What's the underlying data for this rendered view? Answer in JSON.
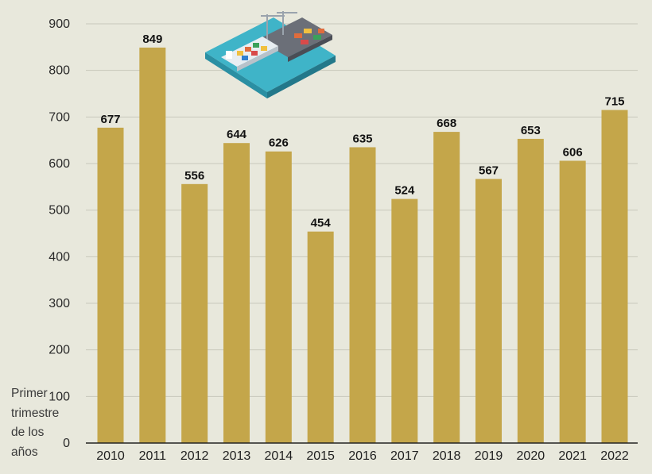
{
  "chart_data": {
    "type": "bar",
    "categories": [
      "2010",
      "2011",
      "2012",
      "2013",
      "2014",
      "2015",
      "2016",
      "2017",
      "2018",
      "2019",
      "2020",
      "2021",
      "2022"
    ],
    "values": [
      677,
      849,
      556,
      644,
      626,
      454,
      635,
      524,
      668,
      567,
      653,
      606,
      715
    ],
    "ylim": [
      0,
      900
    ],
    "yticks": [
      0,
      100,
      200,
      300,
      400,
      500,
      600,
      700,
      800,
      900
    ],
    "title": "",
    "xlabel": "",
    "ylabel": "",
    "xlabel_lines": [
      "Primer",
      "trimestre",
      "de los",
      "años"
    ],
    "grid": true,
    "bar_color": "#c4a64a",
    "data_labels": true
  },
  "illustration": {
    "icon": "port-ship-icon"
  }
}
